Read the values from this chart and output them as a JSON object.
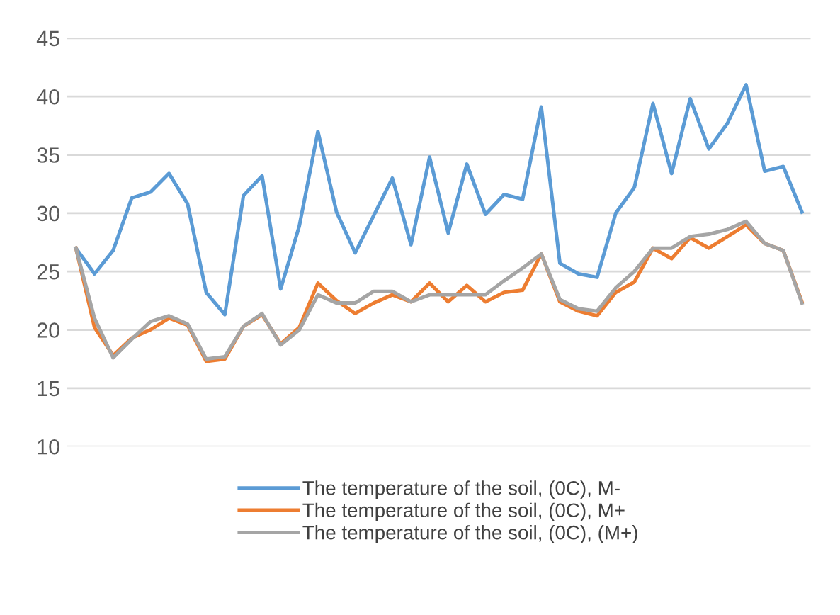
{
  "chart_data": {
    "type": "line",
    "categories": [
      null,
      null,
      null,
      null,
      null,
      null,
      null,
      null,
      null,
      null,
      null,
      null,
      null,
      null,
      null,
      null,
      null,
      null,
      null,
      null,
      null,
      null,
      null,
      null,
      null,
      null,
      null,
      null,
      null,
      null,
      null,
      null,
      null,
      null,
      null,
      null,
      null,
      null,
      null,
      null
    ],
    "series": [
      {
        "name": "The temperature of the soil, (0C), M-",
        "color": "#5b9bd5",
        "values": [
          27,
          24.8,
          26.8,
          31.3,
          31.8,
          33.4,
          30.8,
          23.2,
          21.3,
          31.5,
          33.2,
          23.5,
          28.9,
          37,
          30.1,
          26.6,
          29.8,
          33,
          27.3,
          34.8,
          28.3,
          34.2,
          29.9,
          31.6,
          31.2,
          39.1,
          25.7,
          24.8,
          24.5,
          30,
          32.2,
          39.4,
          33.4,
          39.8,
          35.5,
          37.7,
          41,
          33.6,
          34,
          30.1
        ]
      },
      {
        "name": "The temperature of the soil, (0C), M+",
        "color": "#ed7d31",
        "values": [
          27,
          20.2,
          17.8,
          19.3,
          20,
          21,
          20.4,
          17.3,
          17.5,
          20.3,
          21.3,
          18.8,
          20.2,
          24,
          22.5,
          21.4,
          22.3,
          23,
          22.4,
          24,
          22.4,
          23.8,
          22.4,
          23.2,
          23.4,
          26.5,
          22.4,
          21.6,
          21.2,
          23.2,
          24.1,
          27,
          26.1,
          27.9,
          27,
          28,
          29,
          27.4,
          26.8,
          22.4
        ]
      },
      {
        "name": "The temperature of the soil, (0C), (M+)",
        "color": "#a5a5a5",
        "values": [
          27,
          21,
          17.6,
          19.2,
          20.7,
          21.2,
          20.5,
          17.5,
          17.7,
          20.3,
          21.4,
          18.7,
          20,
          23,
          22.3,
          22.3,
          23.3,
          23.3,
          22.4,
          23,
          23,
          23,
          23,
          24.2,
          25.3,
          26.5,
          22.6,
          21.8,
          21.6,
          23.6,
          25,
          27,
          27,
          28,
          28.2,
          28.6,
          29.3,
          27.4,
          26.8,
          22.3
        ]
      }
    ],
    "ylim": [
      10,
      45
    ],
    "yticks": [
      10,
      15,
      20,
      25,
      30,
      35,
      40,
      45
    ],
    "grid": "y",
    "legend": "bottom",
    "marker": "none",
    "line_style": "solid"
  }
}
